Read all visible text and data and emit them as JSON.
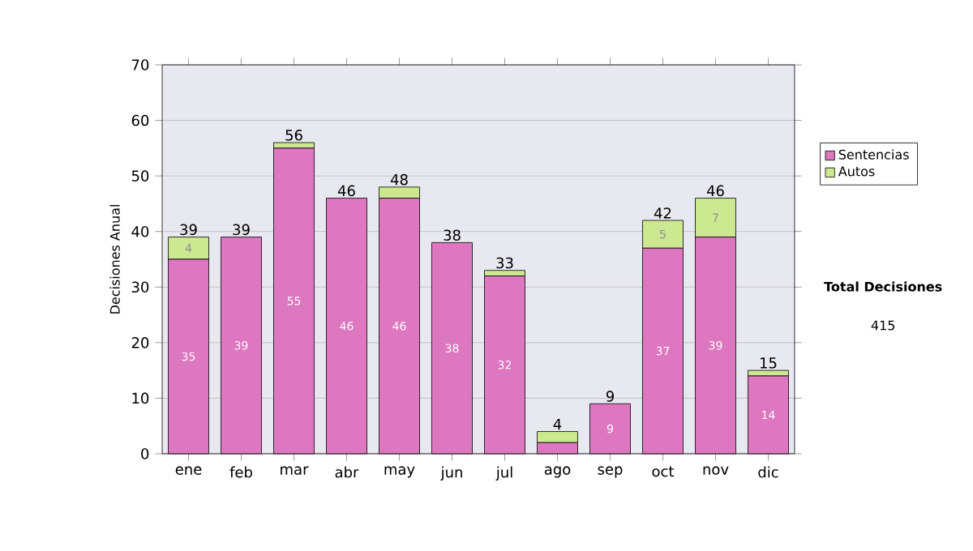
{
  "chart_data": {
    "type": "bar",
    "stacked": true,
    "ylabel": "Decisiones Anual",
    "categories": [
      "ene",
      "feb",
      "mar",
      "abr",
      "may",
      "jun",
      "jul",
      "ago",
      "sep",
      "oct",
      "nov",
      "dic"
    ],
    "series": [
      {
        "name": "Sentencias",
        "color": "#dd77c0",
        "values": [
          35,
          39,
          55,
          46,
          46,
          38,
          32,
          2,
          9,
          37,
          39,
          14
        ],
        "value_labels": [
          "35",
          "39",
          "55",
          "46",
          "46",
          "38",
          "32",
          null,
          "9",
          "37",
          "39",
          "14"
        ]
      },
      {
        "name": "Autos",
        "color": "#cce890",
        "values": [
          4,
          0,
          1,
          0,
          2,
          0,
          1,
          2,
          0,
          5,
          7,
          1
        ],
        "value_labels": [
          "4",
          null,
          null,
          null,
          null,
          null,
          null,
          null,
          null,
          "5",
          "7",
          null
        ]
      }
    ],
    "totals": [
      "39",
      "39",
      "56",
      "46",
      "48",
      "38",
      "33",
      "4",
      "9",
      "42",
      "46",
      "15"
    ],
    "ylim": [
      0,
      70
    ],
    "yticks": [
      0,
      10,
      20,
      30,
      40,
      50,
      60,
      70
    ],
    "grid": "y",
    "legend": "right",
    "annotations": [
      "Total Decisiones",
      "415"
    ]
  }
}
